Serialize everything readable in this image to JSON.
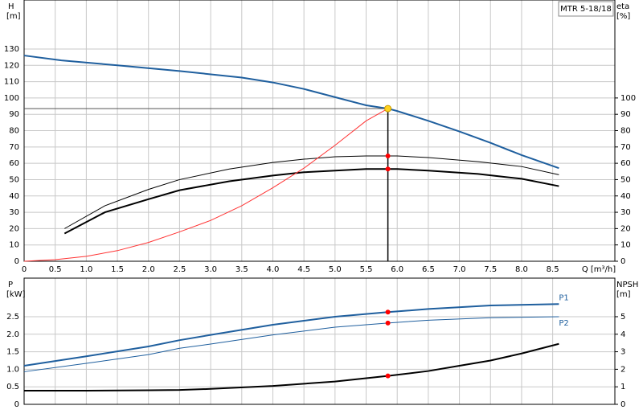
{
  "chart_data": [
    {
      "type": "line",
      "title": "MTR 5-18/18",
      "y_label": "H",
      "y_unit": "[m]",
      "y2_label": "eta",
      "y2_unit": "[%]",
      "x_label": "Q [m³/h]",
      "xlim": [
        0,
        9.5
      ],
      "xticks": [
        0,
        0.5,
        {
          "value": 1,
          "label": "1.0"
        },
        1.5,
        {
          "value": 2,
          "label": "2.0"
        },
        2.5,
        {
          "value": 3,
          "label": "3.0"
        },
        3.5,
        {
          "value": 4,
          "label": "4.0"
        },
        4.5,
        {
          "value": 5,
          "label": "5.0"
        },
        5.5,
        {
          "value": 6,
          "label": "6.0"
        },
        6.5,
        {
          "value": 7,
          "label": "7.0"
        },
        7.5,
        {
          "value": 8,
          "label": "8.0"
        },
        8.5
      ],
      "ylim": [
        0,
        160
      ],
      "yticks": [
        0,
        10,
        20,
        30,
        40,
        50,
        60,
        70,
        80,
        90,
        100,
        110,
        120,
        130
      ],
      "y2lim": [
        0,
        160
      ],
      "y2ticks": [
        0,
        10,
        20,
        30,
        40,
        50,
        60,
        70,
        80,
        90,
        100
      ],
      "grid": true,
      "series": [
        {
          "color": "#1f5f9e",
          "width": 2,
          "x": [
            0,
            0.6,
            1.5,
            2.5,
            3.5,
            4,
            4.5,
            5,
            5.5,
            5.85,
            6,
            6.5,
            7,
            7.5,
            8,
            8.6
          ],
          "values": [
            126,
            123,
            120,
            116.5,
            112.5,
            109.5,
            105.5,
            100.5,
            95.5,
            93.5,
            92,
            86,
            79.5,
            72.5,
            65,
            57
          ]
        },
        {
          "color": "#000000",
          "width": 1,
          "axis": "y2",
          "x": [
            0.65,
            1.3,
            2,
            2.5,
            3.3,
            4,
            4.5,
            5,
            5.5,
            6,
            6.5,
            7.3,
            8,
            8.6
          ],
          "values": [
            20,
            34,
            44,
            50,
            56.5,
            60.5,
            62.5,
            64,
            64.5,
            64.5,
            63.5,
            61,
            58,
            53
          ]
        },
        {
          "color": "#000000",
          "width": 2,
          "axis": "y2",
          "x": [
            0.65,
            1.3,
            2,
            2.5,
            3.3,
            4,
            4.5,
            5,
            5.5,
            6,
            6.5,
            7.3,
            8,
            8.6
          ],
          "values": [
            17,
            30,
            38,
            43.5,
            49,
            52.5,
            54.5,
            55.5,
            56.5,
            56.5,
            55.5,
            53.5,
            50.5,
            46
          ]
        },
        {
          "color": "#ff3333",
          "width": 1,
          "x": [
            0,
            0.5,
            1,
            1.5,
            2,
            2.5,
            3,
            3.5,
            4,
            4.5,
            5,
            5.5,
            5.85
          ],
          "values": [
            0,
            1,
            3,
            6.5,
            11.5,
            18,
            25,
            34,
            45,
            57,
            71,
            86,
            93.5
          ]
        }
      ],
      "markers": [
        {
          "x": 5.85,
          "y": 93.5,
          "color": "#ffd21f",
          "guides": true
        },
        {
          "x": 5.85,
          "y": 64.5,
          "color": "#ff0000",
          "axis": "y2"
        },
        {
          "x": 5.85,
          "y": 56.5,
          "color": "#ff0000",
          "axis": "y2"
        }
      ]
    },
    {
      "type": "line",
      "y_label": "P",
      "y_unit": "[kW]",
      "y2_label": "NPSH",
      "y2_unit": "[m]",
      "xlim": [
        0,
        9.5
      ],
      "xticks": [
        0,
        0.5,
        1,
        1.5,
        2,
        2.5,
        3,
        3.5,
        4,
        4.5,
        5,
        5.5,
        6,
        6.5,
        7,
        7.5,
        8,
        8.5
      ],
      "ylim": [
        0,
        3.6
      ],
      "yticks": [
        0,
        0.5,
        {
          "value": 1,
          "label": "1.0"
        },
        1.5,
        {
          "value": 2,
          "label": "2.0"
        },
        2.5
      ],
      "y2lim": [
        0,
        7.2
      ],
      "y2ticks": [
        0,
        1,
        2,
        3,
        4,
        5
      ],
      "grid": true,
      "series": [
        {
          "name": "P1",
          "color": "#1f5f9e",
          "width": 2,
          "x": [
            0,
            1,
            2,
            2.5,
            3,
            4,
            5,
            5.85,
            6.5,
            7.5,
            8.6
          ],
          "values": [
            1.1,
            1.37,
            1.65,
            1.83,
            1.98,
            2.27,
            2.5,
            2.63,
            2.72,
            2.82,
            2.86
          ]
        },
        {
          "name": "P2",
          "color": "#1f5f9e",
          "width": 1,
          "x": [
            0,
            1,
            2,
            2.5,
            3,
            4,
            5,
            5.85,
            6.5,
            7.5,
            8.6
          ],
          "values": [
            0.93,
            1.17,
            1.42,
            1.6,
            1.72,
            1.98,
            2.2,
            2.32,
            2.4,
            2.47,
            2.5
          ]
        },
        {
          "color": "#000000",
          "width": 2,
          "axis": "y2",
          "x": [
            0,
            1,
            2,
            2.5,
            3,
            4,
            5,
            5.85,
            6.5,
            7,
            7.5,
            8,
            8.6
          ],
          "values": [
            0.78,
            0.78,
            0.8,
            0.82,
            0.88,
            1.05,
            1.3,
            1.62,
            1.9,
            2.2,
            2.5,
            2.9,
            3.45
          ]
        }
      ],
      "markers": [
        {
          "x": 5.85,
          "y": 2.63,
          "color": "#ff0000"
        },
        {
          "x": 5.85,
          "y": 2.32,
          "color": "#ff0000"
        },
        {
          "x": 5.85,
          "y": 1.62,
          "color": "#ff0000",
          "axis": "y2"
        }
      ]
    }
  ]
}
